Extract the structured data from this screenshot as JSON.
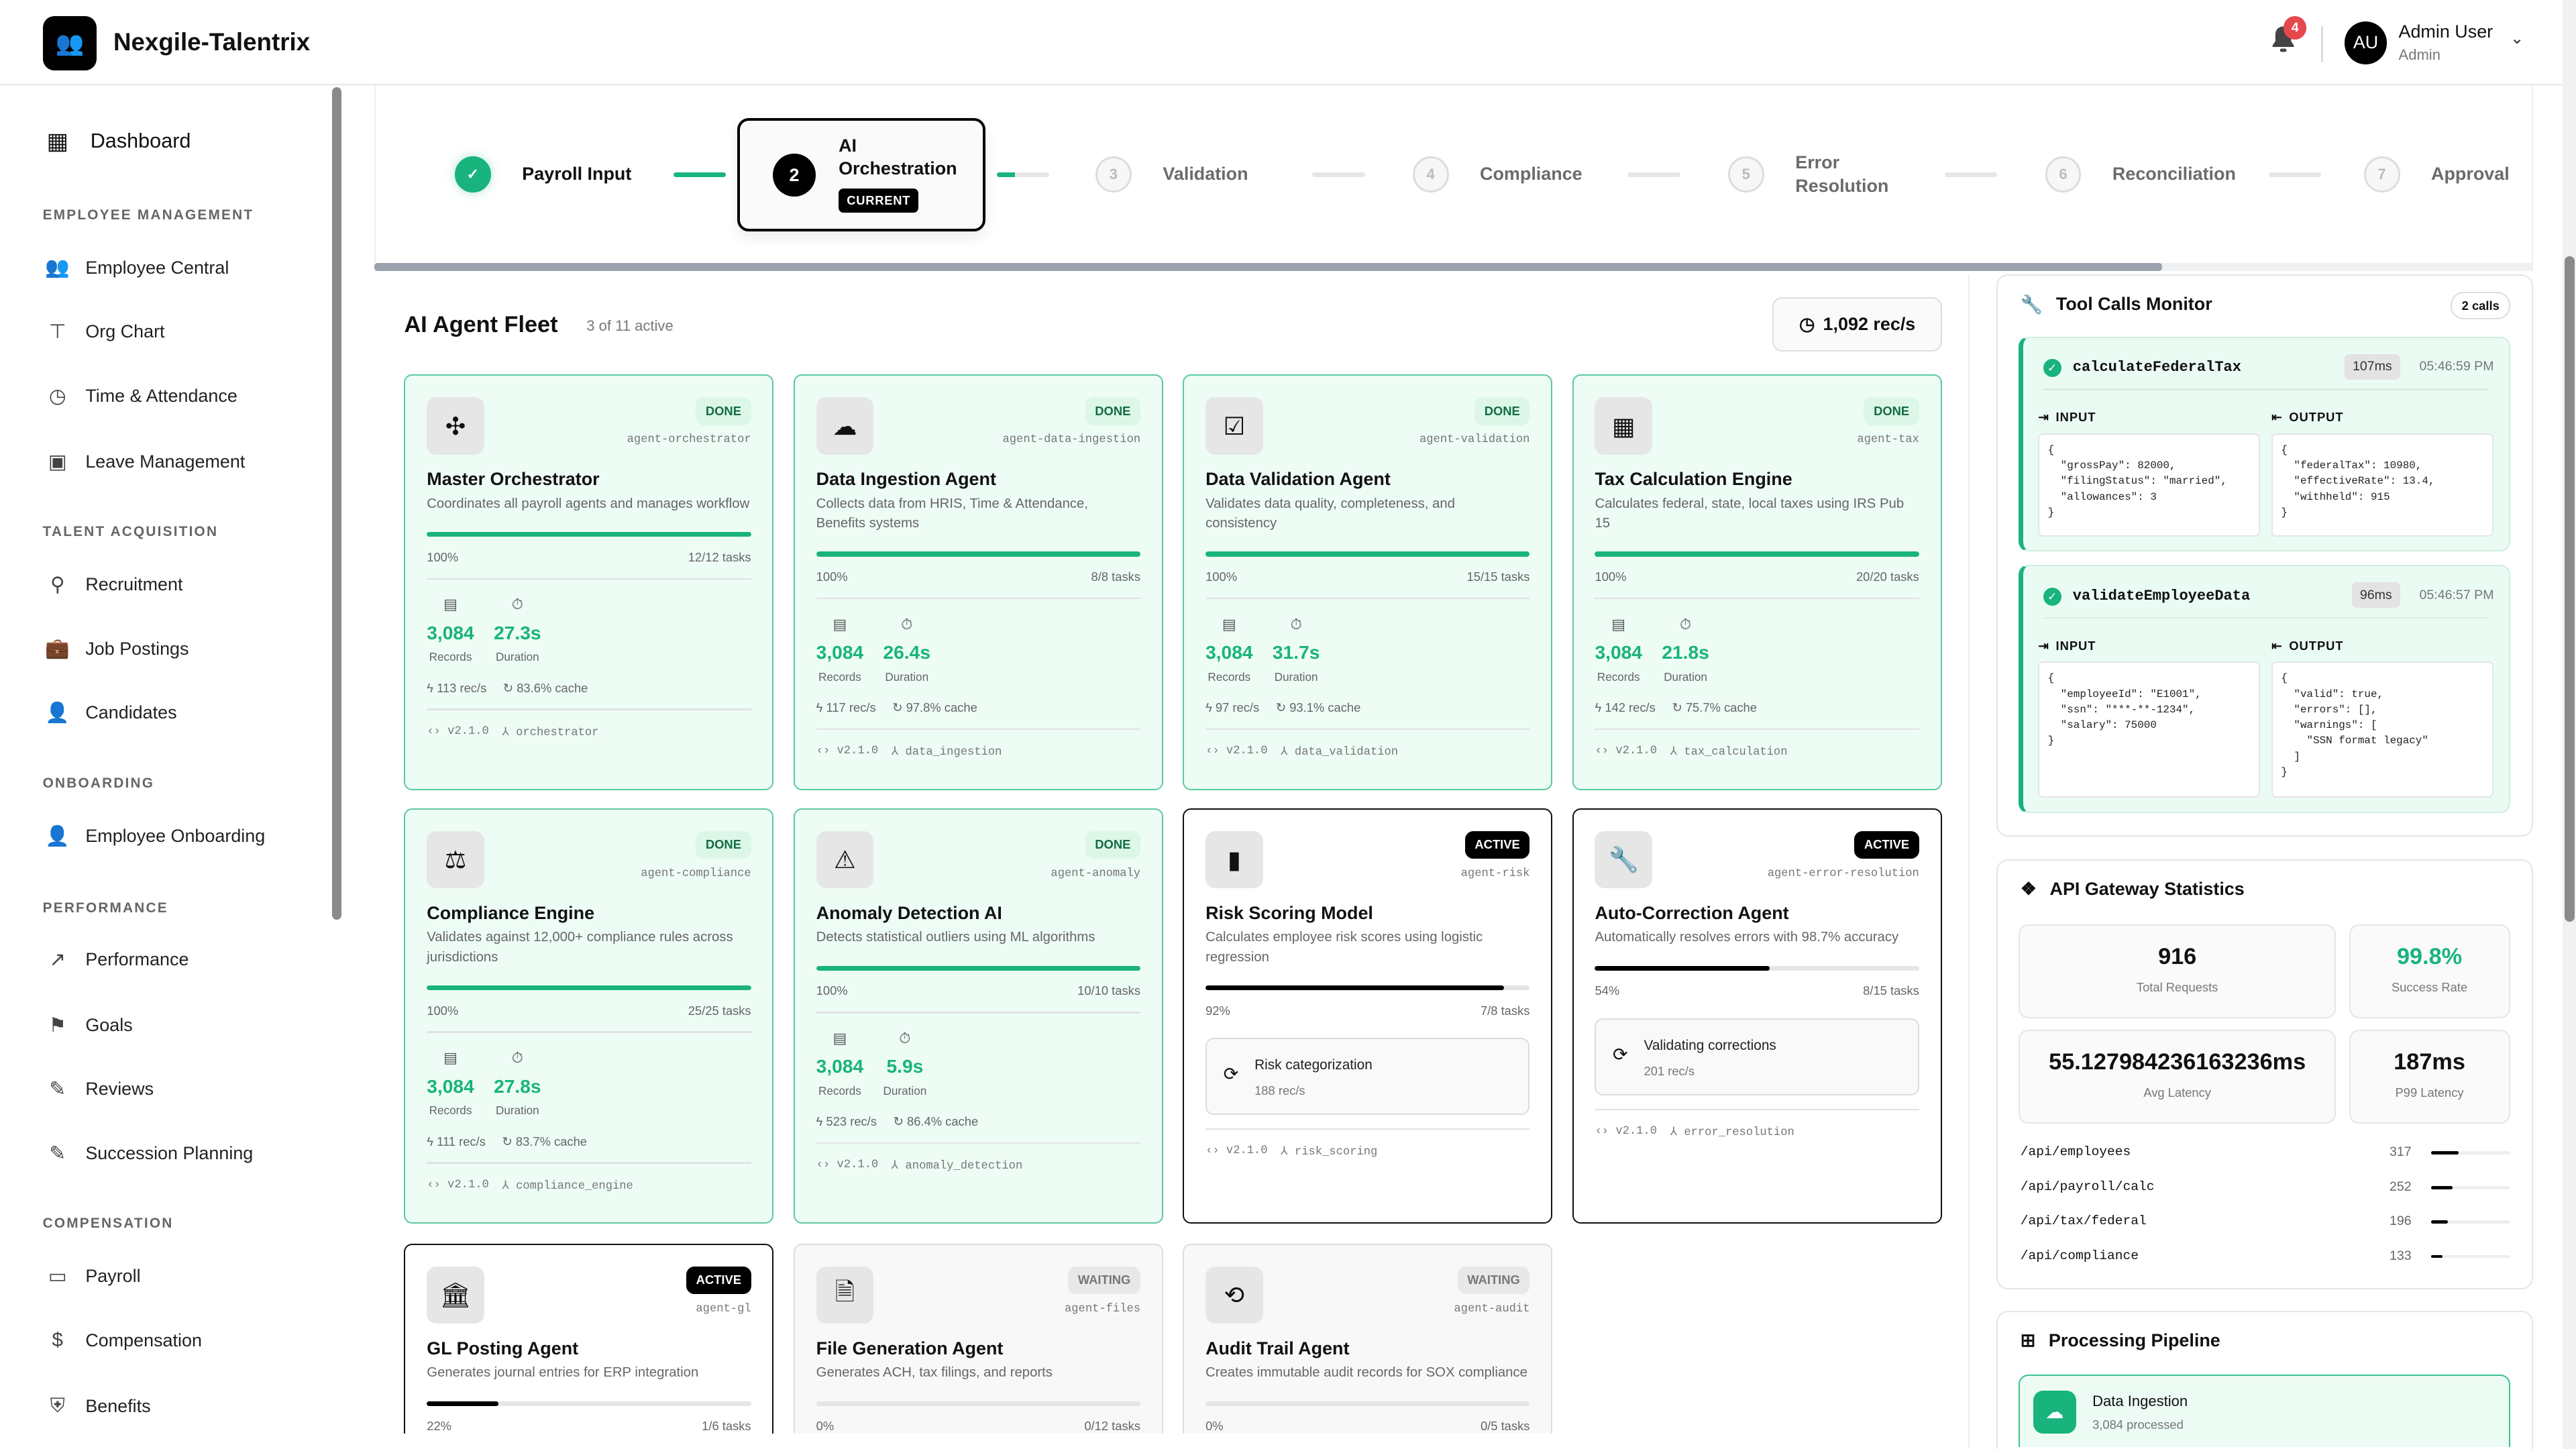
{
  "app": {
    "title": "Nexgile-Talentrix",
    "logo_icon": "people-group-icon"
  },
  "header": {
    "notifications_count": "4",
    "user_initials": "AU",
    "user_name": "Admin User",
    "user_role": "Admin"
  },
  "sidebar": {
    "dashboard": "Dashboard",
    "sections": [
      {
        "title": "EMPLOYEE MANAGEMENT",
        "items": [
          "Employee Central",
          "Org Chart",
          "Time & Attendance",
          "Leave Management"
        ]
      },
      {
        "title": "TALENT ACQUISITION",
        "items": [
          "Recruitment",
          "Job Postings",
          "Candidates"
        ]
      },
      {
        "title": "ONBOARDING",
        "items": [
          "Employee Onboarding"
        ]
      },
      {
        "title": "PERFORMANCE",
        "items": [
          "Performance",
          "Goals",
          "Reviews",
          "Succession Planning"
        ]
      },
      {
        "title": "COMPENSATION",
        "items": [
          "Payroll",
          "Compensation",
          "Benefits"
        ]
      }
    ]
  },
  "stepper": {
    "steps": [
      {
        "num": "1",
        "label": "Payroll Input",
        "state": "done"
      },
      {
        "num": "2",
        "label": "AI Orchestration",
        "state": "current",
        "badge": "CURRENT"
      },
      {
        "num": "3",
        "label": "Validation",
        "state": "pending"
      },
      {
        "num": "4",
        "label": "Compliance",
        "state": "pending"
      },
      {
        "num": "5",
        "label": "Error Resolution",
        "state": "pending"
      },
      {
        "num": "6",
        "label": "Reconciliation",
        "state": "pending"
      },
      {
        "num": "7",
        "label": "Approval",
        "state": "pending"
      }
    ],
    "connector_progress": [
      1,
      0.35,
      0,
      0,
      0,
      0
    ]
  },
  "fleet": {
    "title": "AI Agent Fleet",
    "subtitle": "3 of 11 active",
    "throughput": "1,092 rec/s",
    "records_label": "Records",
    "duration_label": "Duration",
    "agents": [
      {
        "icon": "hub-icon",
        "glyph": "✣",
        "status": "DONE",
        "id": "agent-orchestrator",
        "name": "Master Orchestrator",
        "desc": "Coordinates all payroll agents and manages workflow",
        "percent": 100,
        "percent_text": "100%",
        "tasks": "12/12 tasks",
        "records": "3,084",
        "duration": "27.3s",
        "rate": "113 rec/s",
        "cache": "83.6% cache",
        "version": "v2.1.0",
        "module": "orchestrator"
      },
      {
        "icon": "cloud-download-icon",
        "glyph": "☁",
        "status": "DONE",
        "id": "agent-data-ingestion",
        "name": "Data Ingestion Agent",
        "desc": "Collects data from HRIS, Time & Attendance, Benefits systems",
        "percent": 100,
        "percent_text": "100%",
        "tasks": "8/8 tasks",
        "records": "3,084",
        "duration": "26.4s",
        "rate": "117 rec/s",
        "cache": "97.8% cache",
        "version": "v2.1.0",
        "module": "data_ingestion"
      },
      {
        "icon": "checklist-icon",
        "glyph": "☑",
        "status": "DONE",
        "id": "agent-validation",
        "name": "Data Validation Agent",
        "desc": "Validates data quality, completeness, and consistency",
        "percent": 100,
        "percent_text": "100%",
        "tasks": "15/15 tasks",
        "records": "3,084",
        "duration": "31.7s",
        "rate": "97 rec/s",
        "cache": "93.1% cache",
        "version": "v2.1.0",
        "module": "data_validation"
      },
      {
        "icon": "calculator-icon",
        "glyph": "▦",
        "status": "DONE",
        "id": "agent-tax",
        "name": "Tax Calculation Engine",
        "desc": "Calculates federal, state, local taxes using IRS Pub 15",
        "percent": 100,
        "percent_text": "100%",
        "tasks": "20/20 tasks",
        "records": "3,084",
        "duration": "21.8s",
        "rate": "142 rec/s",
        "cache": "75.7% cache",
        "version": "v2.1.0",
        "module": "tax_calculation"
      },
      {
        "icon": "gavel-icon",
        "glyph": "⚖",
        "status": "DONE",
        "id": "agent-compliance",
        "name": "Compliance Engine",
        "desc": "Validates against 12,000+ compliance rules across jurisdictions",
        "percent": 100,
        "percent_text": "100%",
        "tasks": "25/25 tasks",
        "records": "3,084",
        "duration": "27.8s",
        "rate": "111 rec/s",
        "cache": "83.7% cache",
        "version": "v2.1.0",
        "module": "compliance_engine"
      },
      {
        "icon": "warning-icon",
        "glyph": "⚠",
        "status": "DONE",
        "id": "agent-anomaly",
        "name": "Anomaly Detection AI",
        "desc": "Detects statistical outliers using ML algorithms",
        "percent": 100,
        "percent_text": "100%",
        "tasks": "10/10 tasks",
        "records": "3,084",
        "duration": "5.9s",
        "rate": "523 rec/s",
        "cache": "86.4% cache",
        "version": "v2.1.0",
        "module": "anomaly_detection"
      },
      {
        "icon": "bar-chart-icon",
        "glyph": "▮",
        "status": "ACTIVE",
        "id": "agent-risk",
        "name": "Risk Scoring Model",
        "desc": "Calculates employee risk scores using logistic regression",
        "percent": 92,
        "percent_text": "92%",
        "tasks": "7/8 tasks",
        "current_task": "Risk categorization",
        "current_rate": "188 rec/s",
        "version": "v2.1.0",
        "module": "risk_scoring"
      },
      {
        "icon": "wrench-icon",
        "glyph": "🔧",
        "status": "ACTIVE",
        "id": "agent-error-resolution",
        "name": "Auto-Correction Agent",
        "desc": "Automatically resolves errors with 98.7% accuracy",
        "percent": 54,
        "percent_text": "54%",
        "tasks": "8/15 tasks",
        "current_task": "Validating corrections",
        "current_rate": "201 rec/s",
        "version": "v2.1.0",
        "module": "error_resolution"
      },
      {
        "icon": "bank-icon",
        "glyph": "🏛",
        "status": "ACTIVE",
        "id": "agent-gl",
        "name": "GL Posting Agent",
        "desc": "Generates journal entries for ERP integration",
        "percent": 22,
        "percent_text": "22%",
        "tasks": "1/6 tasks"
      },
      {
        "icon": "file-icon",
        "glyph": "🗎",
        "status": "WAITING",
        "id": "agent-files",
        "name": "File Generation Agent",
        "desc": "Generates ACH, tax filings, and reports",
        "percent": 0,
        "percent_text": "0%",
        "tasks": "0/12 tasks"
      },
      {
        "icon": "history-icon",
        "glyph": "⟲",
        "status": "WAITING",
        "id": "agent-audit",
        "name": "Audit Trail Agent",
        "desc": "Creates immutable audit records for SOX compliance",
        "percent": 0,
        "percent_text": "0%",
        "tasks": "0/5 tasks"
      }
    ]
  },
  "tool_calls": {
    "title": "Tool Calls Monitor",
    "count": "2 calls",
    "input_label": "INPUT",
    "output_label": "OUTPUT",
    "calls": [
      {
        "name": "calculateFederalTax",
        "duration": "107ms",
        "time": "05:46:59 PM",
        "input": "{\n  \"grossPay\": 82000,\n  \"filingStatus\": \"married\",\n  \"allowances\": 3\n}",
        "output": "{\n  \"federalTax\": 10980,\n  \"effectiveRate\": 13.4,\n  \"withheld\": 915\n}"
      },
      {
        "name": "validateEmployeeData",
        "duration": "96ms",
        "time": "05:46:57 PM",
        "input": "{\n  \"employeeId\": \"E1001\",\n  \"ssn\": \"***-**-1234\",\n  \"salary\": 75000\n}",
        "output": "{\n  \"valid\": true,\n  \"errors\": [],\n  \"warnings\": [\n    \"SSN format legacy\"\n  ]\n}"
      }
    ]
  },
  "api_gateway": {
    "title": "API Gateway Statistics",
    "stats": [
      {
        "value": "916",
        "label": "Total Requests"
      },
      {
        "value": "99.8%",
        "label": "Success Rate"
      },
      {
        "value": "55.127984236163236ms",
        "label": "Avg Latency"
      },
      {
        "value": "187ms",
        "label": "P99 Latency"
      }
    ],
    "total": 916,
    "endpoints": [
      {
        "path": "/api/employees",
        "count": 317
      },
      {
        "path": "/api/payroll/calc",
        "count": 252
      },
      {
        "path": "/api/tax/federal",
        "count": 196
      },
      {
        "path": "/api/compliance",
        "count": 133
      }
    ]
  },
  "pipeline": {
    "title": "Processing Pipeline",
    "items": [
      {
        "name": "Data Ingestion",
        "status": "3,084 processed"
      }
    ]
  },
  "colors": {
    "accent": "#19b37d",
    "done_bg": "#edfcf4",
    "alert": "#e5484d"
  }
}
